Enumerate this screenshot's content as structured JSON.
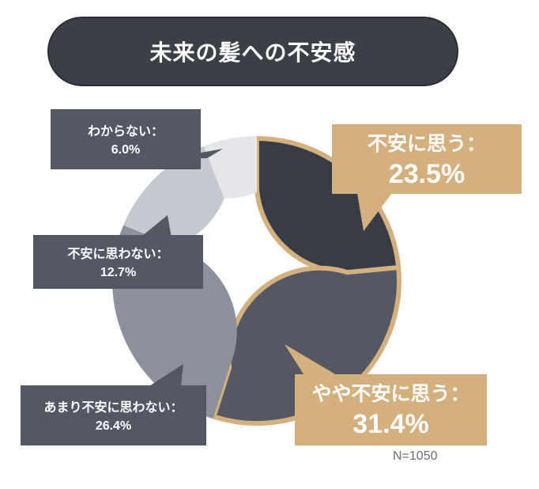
{
  "title": "未来の髪への不安感",
  "note": "N=1050",
  "colors": {
    "anxious": "#383c44",
    "somewhat_anxious": "#535862",
    "not_very": "#8c919c",
    "not_anxious": "#c5c8ce",
    "unknown": "#e5e6ea",
    "highlight": "#d4b07f",
    "callout_dark": "#545863"
  },
  "chart_data": {
    "type": "pie",
    "title": "未来の髪への不安感",
    "categories": [
      "不安に思う",
      "やや不安に思う",
      "あまり不安に思わない",
      "不安に思わない",
      "わからない"
    ],
    "values": [
      23.5,
      31.4,
      26.4,
      12.7,
      6.0
    ],
    "labels": [
      "不安に思う：",
      "やや不安に思う：",
      "あまり不安に思わない：",
      "不安に思わない：",
      "わからない："
    ],
    "value_labels": [
      "23.5%",
      "31.4%",
      "26.4%",
      "12.7%",
      "6.0%"
    ],
    "highlighted": [
      true,
      true,
      false,
      false,
      false
    ],
    "note": "N=1050"
  }
}
